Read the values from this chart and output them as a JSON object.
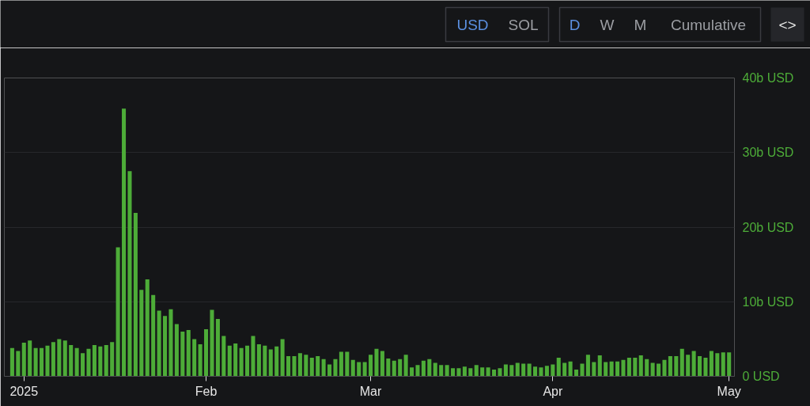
{
  "chart_data": {
    "type": "bar",
    "x": [
      "2024-12-30",
      "2024-12-31",
      "2025-01-01",
      "2025-01-02",
      "2025-01-03",
      "2025-01-04",
      "2025-01-05",
      "2025-01-06",
      "2025-01-07",
      "2025-01-08",
      "2025-01-09",
      "2025-01-10",
      "2025-01-11",
      "2025-01-12",
      "2025-01-13",
      "2025-01-14",
      "2025-01-15",
      "2025-01-16",
      "2025-01-17",
      "2025-01-18",
      "2025-01-19",
      "2025-01-20",
      "2025-01-21",
      "2025-01-22",
      "2025-01-23",
      "2025-01-24",
      "2025-01-25",
      "2025-01-26",
      "2025-01-27",
      "2025-01-28",
      "2025-01-29",
      "2025-01-30",
      "2025-01-31",
      "2025-02-01",
      "2025-02-02",
      "2025-02-03",
      "2025-02-04",
      "2025-02-05",
      "2025-02-06",
      "2025-02-07",
      "2025-02-08",
      "2025-02-09",
      "2025-02-10",
      "2025-02-11",
      "2025-02-12",
      "2025-02-13",
      "2025-02-14",
      "2025-02-15",
      "2025-02-16",
      "2025-02-17",
      "2025-02-18",
      "2025-02-19",
      "2025-02-20",
      "2025-02-21",
      "2025-02-22",
      "2025-02-23",
      "2025-02-24",
      "2025-02-25",
      "2025-02-26",
      "2025-02-27",
      "2025-02-28",
      "2025-03-01",
      "2025-03-02",
      "2025-03-03",
      "2025-03-04",
      "2025-03-05",
      "2025-03-06",
      "2025-03-07",
      "2025-03-08",
      "2025-03-09",
      "2025-03-10",
      "2025-03-11",
      "2025-03-12",
      "2025-03-13",
      "2025-03-14",
      "2025-03-15",
      "2025-03-16",
      "2025-03-17",
      "2025-03-18",
      "2025-03-19",
      "2025-03-20",
      "2025-03-21",
      "2025-03-22",
      "2025-03-23",
      "2025-03-24",
      "2025-03-25",
      "2025-03-26",
      "2025-03-27",
      "2025-03-28",
      "2025-03-29",
      "2025-03-30",
      "2025-03-31",
      "2025-04-01",
      "2025-04-02",
      "2025-04-03",
      "2025-04-04",
      "2025-04-05",
      "2025-04-06",
      "2025-04-07",
      "2025-04-08",
      "2025-04-09",
      "2025-04-10",
      "2025-04-11",
      "2025-04-12",
      "2025-04-13",
      "2025-04-14",
      "2025-04-15",
      "2025-04-16",
      "2025-04-17",
      "2025-04-18",
      "2025-04-19",
      "2025-04-20",
      "2025-04-21",
      "2025-04-22",
      "2025-04-23",
      "2025-04-24",
      "2025-04-25",
      "2025-04-26",
      "2025-04-27",
      "2025-04-28",
      "2025-04-29",
      "2025-04-30",
      "2025-05-01"
    ],
    "values": [
      3.8,
      3.4,
      4.5,
      4.8,
      3.8,
      3.8,
      4.1,
      4.6,
      5.0,
      4.8,
      4.2,
      3.8,
      3.1,
      3.7,
      4.2,
      4.0,
      4.2,
      4.6,
      17.3,
      35.9,
      27.5,
      21.9,
      11.6,
      13.0,
      10.9,
      8.8,
      8.1,
      9.0,
      7.0,
      6.0,
      6.2,
      5.0,
      4.3,
      6.3,
      8.9,
      7.7,
      5.4,
      4.1,
      4.4,
      3.8,
      4.1,
      5.4,
      4.3,
      4.1,
      3.6,
      4.0,
      5.0,
      2.7,
      2.7,
      3.1,
      2.9,
      2.5,
      2.7,
      2.3,
      1.6,
      2.3,
      3.3,
      3.3,
      2.2,
      1.9,
      1.9,
      2.9,
      3.7,
      3.4,
      2.4,
      2.1,
      2.3,
      2.9,
      1.2,
      1.5,
      2.1,
      2.3,
      1.8,
      1.5,
      1.5,
      1.1,
      1.1,
      1.3,
      1.1,
      1.5,
      1.2,
      1.2,
      0.9,
      1.1,
      1.6,
      1.5,
      1.8,
      1.7,
      1.7,
      1.3,
      1.2,
      1.4,
      1.6,
      2.5,
      1.8,
      2.0,
      0.9,
      1.7,
      2.9,
      1.9,
      2.8,
      1.9,
      2.0,
      2.0,
      2.2,
      2.5,
      2.5,
      2.8,
      2.3,
      1.8,
      1.7,
      2.2,
      2.7,
      2.7,
      3.7,
      2.9,
      3.4,
      2.7,
      2.5,
      3.4,
      3.1,
      3.2,
      3.2
    ],
    "color": "#4dac38",
    "xlim": [
      "2024-12-28T16:00",
      "2025-05-01T22:00"
    ],
    "xticks": [
      {
        "value": "2025-01-01",
        "label": "2025"
      },
      {
        "value": "2025-02-01",
        "label": "Feb"
      },
      {
        "value": "2025-03-01",
        "label": "Mar"
      },
      {
        "value": "2025-04-01",
        "label": "Apr"
      },
      {
        "value": "2025-05-01",
        "label": "May"
      }
    ],
    "ylim": [
      0,
      40
    ],
    "yticks": [
      {
        "value": 0,
        "label": "0 USD"
      },
      {
        "value": 10,
        "label": "10b USD"
      },
      {
        "value": 20,
        "label": "20b USD"
      },
      {
        "value": 30,
        "label": "30b USD"
      },
      {
        "value": 40,
        "label": "40b USD"
      }
    ],
    "grid": "y",
    "annotations": [
      "USD",
      "SOL",
      "D",
      "W",
      "M",
      "Cumulative",
      "<>"
    ]
  }
}
